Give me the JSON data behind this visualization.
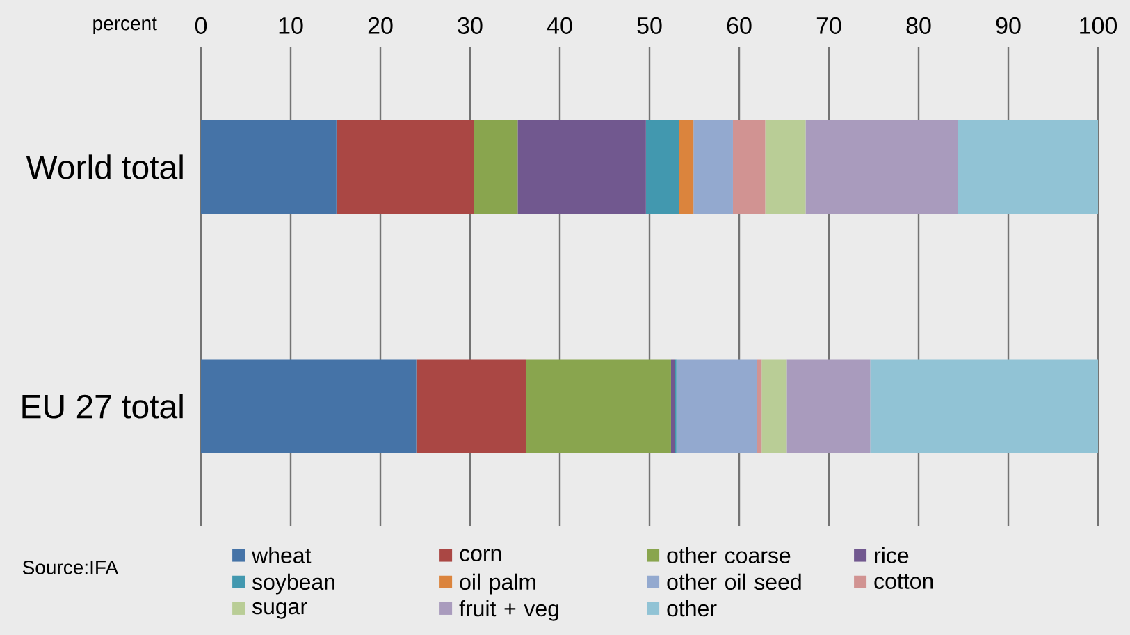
{
  "chart_data": {
    "type": "bar",
    "orientation": "horizontal",
    "stacked": true,
    "xlabel": "percent",
    "categories": [
      "World total",
      "EU 27 total"
    ],
    "xlim": [
      0,
      100
    ],
    "xticks": [
      0,
      10,
      20,
      30,
      40,
      50,
      60,
      70,
      80,
      90,
      100
    ],
    "grid": "x",
    "legend": "bottom",
    "annotations": [
      "Source:IFA"
    ],
    "series": [
      {
        "name": "wheat",
        "color": "#4573a7",
        "values": [
          15.1,
          24.0
        ]
      },
      {
        "name": "corn",
        "color": "#aa4744",
        "values": [
          15.3,
          12.2
        ]
      },
      {
        "name": "other coarse",
        "color": "#89a54e",
        "values": [
          4.9,
          16.2
        ]
      },
      {
        "name": "rice",
        "color": "#71588f",
        "values": [
          14.3,
          0.4
        ]
      },
      {
        "name": "soybean",
        "color": "#4298af",
        "values": [
          3.7,
          0.2
        ]
      },
      {
        "name": "oil palm",
        "color": "#db843d",
        "values": [
          1.6,
          0
        ]
      },
      {
        "name": "other oil seed",
        "color": "#93a9cf",
        "values": [
          4.4,
          9.0
        ]
      },
      {
        "name": "cotton",
        "color": "#d19392",
        "values": [
          3.6,
          0.5
        ]
      },
      {
        "name": "sugar",
        "color": "#b9cd96",
        "values": [
          4.5,
          2.8
        ]
      },
      {
        "name": "fruit + veg",
        "color": "#a99bbd",
        "values": [
          17.0,
          9.3
        ]
      },
      {
        "name": "other",
        "color": "#91c3d5",
        "values": [
          15.6,
          25.4
        ]
      }
    ]
  }
}
